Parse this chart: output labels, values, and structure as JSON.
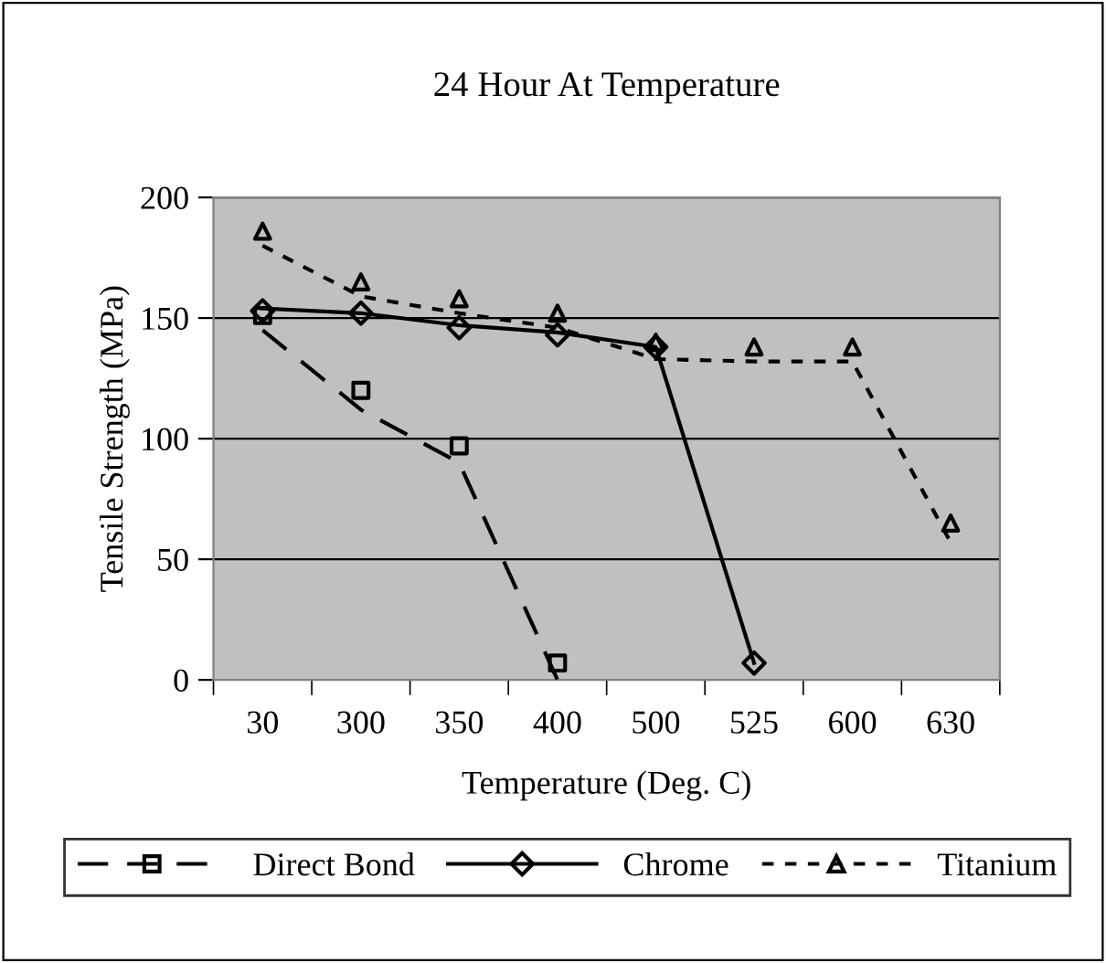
{
  "chart_data": {
    "type": "line",
    "title": "24 Hour At Temperature",
    "xlabel": "Temperature (Deg. C)",
    "ylabel": "Tensile Strength (MPa)",
    "categories": [
      "30",
      "300",
      "350",
      "400",
      "500",
      "525",
      "600",
      "630"
    ],
    "series": [
      {
        "name": "Direct Bond",
        "line_style": "dashed",
        "color": "#000000",
        "values": [
          145,
          112,
          90,
          0,
          null,
          null,
          null,
          null
        ]
      },
      {
        "type": "scatter",
        "marker": "square",
        "color": "#000000",
        "values": [
          151,
          120,
          97,
          7,
          null,
          null,
          null,
          null
        ]
      },
      {
        "name": "Chrome",
        "line_style": "solid",
        "color": "#000000",
        "values": [
          154,
          152,
          147,
          144,
          138,
          7,
          null,
          null
        ]
      },
      {
        "type": "scatter",
        "marker": "diamond",
        "color": "#000000",
        "values": [
          153,
          152,
          146,
          143,
          138,
          7,
          null,
          null
        ]
      },
      {
        "name": "Titanium",
        "line_style": "dotted",
        "color": "#000000",
        "values": [
          180,
          159,
          152,
          146,
          133,
          132,
          132,
          57
        ]
      },
      {
        "type": "scatter",
        "marker": "triangle",
        "color": "#000000",
        "values": [
          186,
          165,
          158,
          152,
          140,
          138,
          138,
          65
        ]
      }
    ],
    "ylim": [
      0,
      200
    ],
    "yticks": [
      0,
      50,
      100,
      150,
      200
    ],
    "grid": "y",
    "legend": "bottom"
  }
}
